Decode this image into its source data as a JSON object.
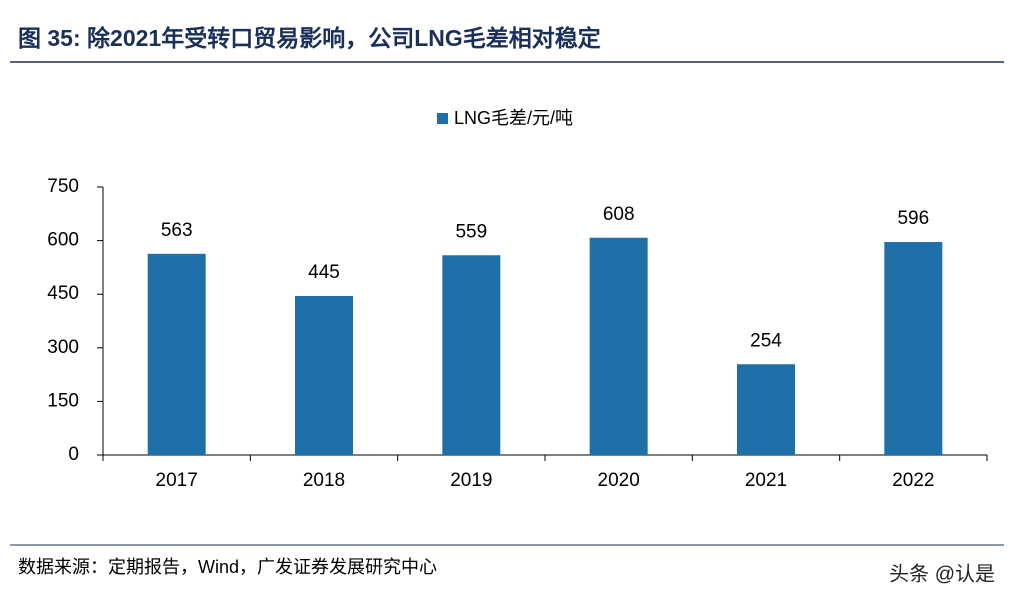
{
  "chart_data": {
    "type": "bar",
    "title": "图 35: 除2021年受转口贸易影响，公司LNG毛差相对稳定",
    "categories": [
      "2017",
      "2018",
      "2019",
      "2020",
      "2021",
      "2022"
    ],
    "series": [
      {
        "name": "LNG毛差/元/吨",
        "color": "#1f6fa8",
        "values": [
          563,
          445,
          559,
          608,
          254,
          596
        ]
      }
    ],
    "ylim": [
      0,
      750
    ],
    "yticks": [
      0,
      150,
      300,
      450,
      600,
      750
    ],
    "grid": false,
    "legend": "top",
    "source": "数据来源：定期报告，Wind，广发证券发展研究中心",
    "watermark": "头条 @认是"
  }
}
